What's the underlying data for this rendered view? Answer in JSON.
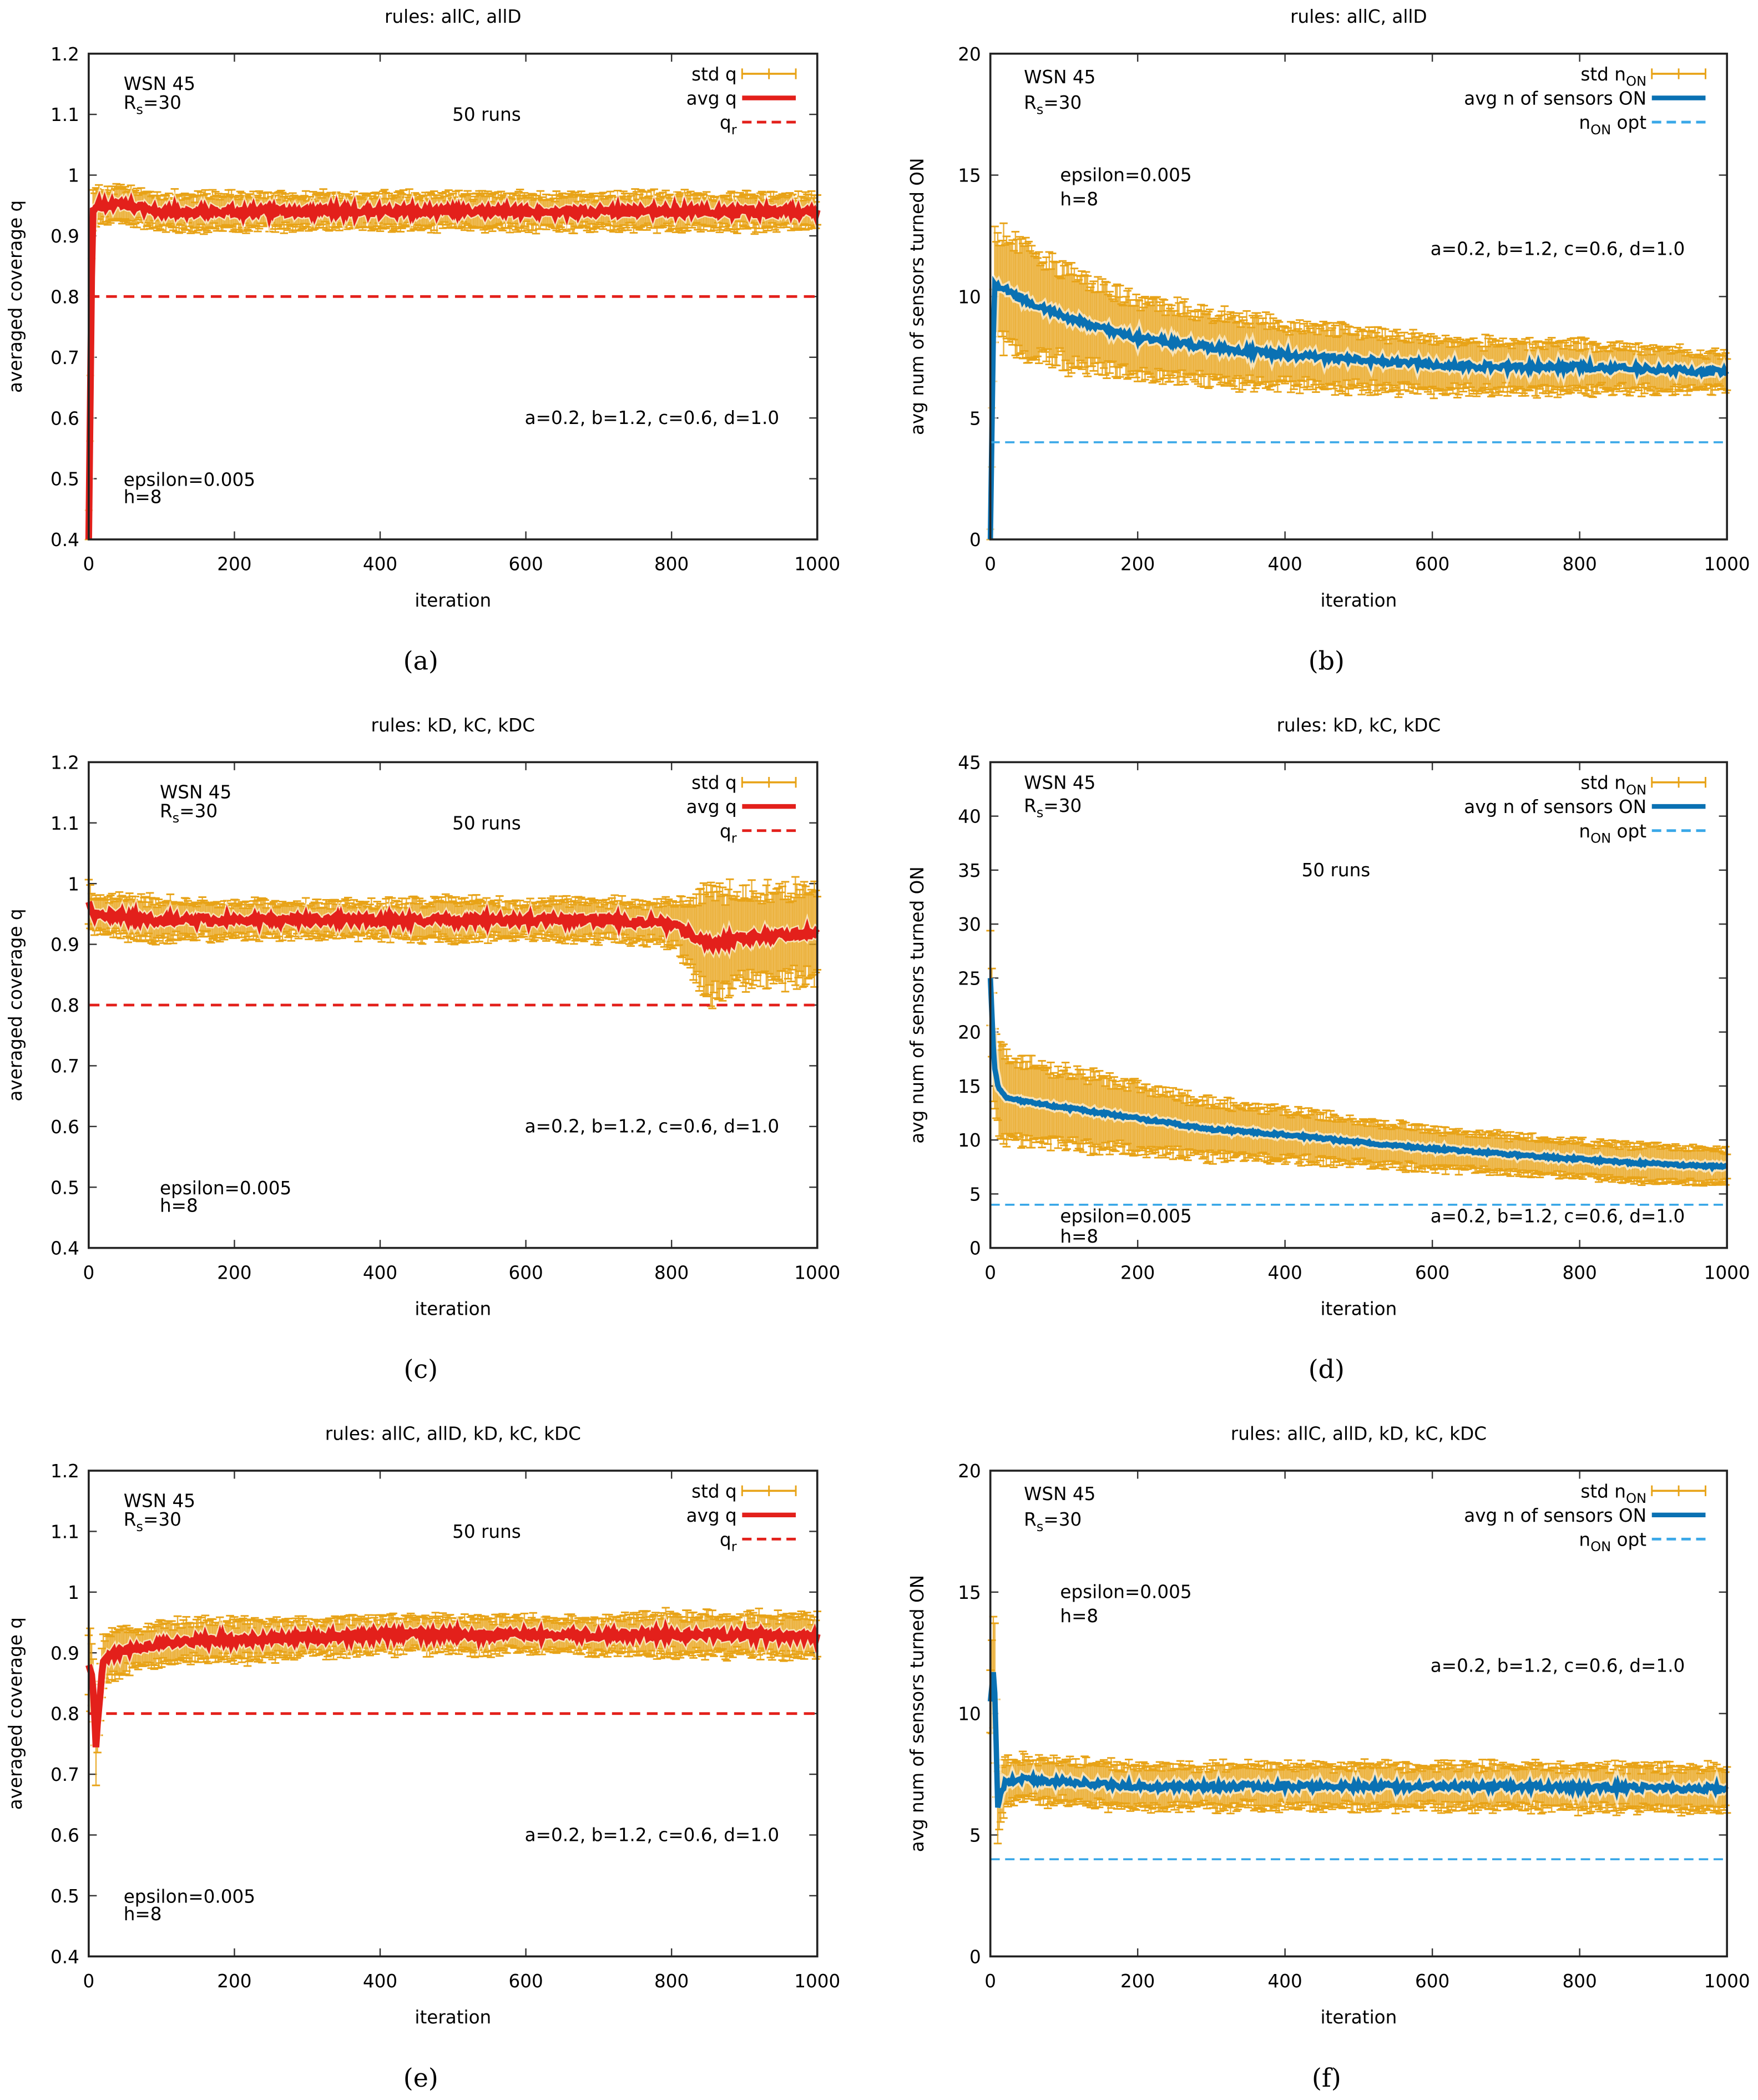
{
  "colors": {
    "std": "#e8a317",
    "avg_q": "#e3201b",
    "avg_n": "#0a71b3",
    "opt": "#3aa8e8",
    "qr": "#e3201b"
  },
  "chart_data": [
    {
      "id": "a",
      "caption": "(a)",
      "type": "line",
      "title": "rules: allC, allD",
      "xlabel": "iteration",
      "ylabel": "averaged coverage q",
      "xlim": [
        0,
        1000
      ],
      "ylim": [
        0.4,
        1.2
      ],
      "xticks": [
        0,
        200,
        400,
        600,
        800,
        1000
      ],
      "yticks": [
        0.4,
        0.5,
        0.6,
        0.7,
        0.8,
        0.9,
        1,
        1.1,
        1.2
      ],
      "legend": [
        "std q",
        "avg q",
        "q{r}"
      ],
      "legend_placement": "top-right",
      "annotations": [
        "WSN 45",
        "R{s}=30",
        "50 runs",
        "epsilon=0.005",
        "h=8",
        "a=0.2, b=1.2, c=0.6, d=1.0"
      ],
      "kind": "q",
      "x": [
        0,
        5,
        10,
        20,
        50,
        100,
        150,
        200,
        300,
        400,
        500,
        600,
        700,
        800,
        900,
        1000
      ],
      "avg": [
        0.4,
        0.94,
        0.95,
        0.95,
        0.95,
        0.94,
        0.94,
        0.94,
        0.94,
        0.94,
        0.94,
        0.94,
        0.94,
        0.94,
        0.94,
        0.94
      ],
      "std": [
        0.05,
        0.03,
        0.025,
        0.025,
        0.025,
        0.025,
        0.025,
        0.025,
        0.025,
        0.025,
        0.025,
        0.025,
        0.025,
        0.025,
        0.025,
        0.025
      ],
      "reference": 0.8
    },
    {
      "id": "b",
      "caption": "(b)",
      "type": "line",
      "title": "rules: allC, allD",
      "xlabel": "iteration",
      "ylabel": "avg num of sensors turned ON",
      "xlim": [
        0,
        1000
      ],
      "ylim": [
        0,
        20
      ],
      "xticks": [
        0,
        200,
        400,
        600,
        800,
        1000
      ],
      "yticks": [
        0,
        5,
        10,
        15,
        20
      ],
      "legend": [
        "std n{ON}",
        "avg n of sensors ON",
        "n{ON} opt"
      ],
      "legend_placement": "top-right",
      "annotations": [
        "WSN 45",
        "R{s}=30",
        "epsilon=0.005",
        "h=8",
        "a=0.2, b=1.2, c=0.6, d=1.0"
      ],
      "kind": "n",
      "x": [
        0,
        5,
        10,
        20,
        50,
        100,
        150,
        200,
        300,
        400,
        500,
        600,
        700,
        800,
        900,
        1000
      ],
      "avg": [
        0,
        10.5,
        10.5,
        10.3,
        9.8,
        9.2,
        8.7,
        8.3,
        7.9,
        7.6,
        7.4,
        7.2,
        7.1,
        7.1,
        7.0,
        6.9
      ],
      "std": [
        0.5,
        2.2,
        2.2,
        2.1,
        2.0,
        1.8,
        1.6,
        1.5,
        1.3,
        1.2,
        1.1,
        1.0,
        0.9,
        0.9,
        0.8,
        0.7
      ],
      "reference": 4
    },
    {
      "id": "c",
      "caption": "(c)",
      "type": "line",
      "title": "rules: kD, kC, kDC",
      "xlabel": "iteration",
      "ylabel": "averaged coverage q",
      "xlim": [
        0,
        1000
      ],
      "ylim": [
        0.4,
        1.2
      ],
      "xticks": [
        0,
        200,
        400,
        600,
        800,
        1000
      ],
      "yticks": [
        0.4,
        0.5,
        0.6,
        0.7,
        0.8,
        0.9,
        1,
        1.1,
        1.2
      ],
      "legend": [
        "std q",
        "avg q",
        "q{r}"
      ],
      "legend_placement": "top-right",
      "annotations": [
        "WSN 45",
        "R{s}=30",
        "50 runs",
        "epsilon=0.005",
        "h=8",
        "a=0.2, b=1.2, c=0.6, d=1.0"
      ],
      "kind": "q",
      "x": [
        0,
        5,
        10,
        20,
        50,
        100,
        150,
        200,
        300,
        400,
        500,
        600,
        700,
        800,
        850,
        900,
        1000
      ],
      "avg": [
        0.97,
        0.95,
        0.95,
        0.95,
        0.945,
        0.94,
        0.94,
        0.94,
        0.94,
        0.94,
        0.94,
        0.94,
        0.94,
        0.935,
        0.9,
        0.91,
        0.92
      ],
      "std": [
        0.03,
        0.025,
        0.025,
        0.025,
        0.03,
        0.03,
        0.025,
        0.025,
        0.025,
        0.025,
        0.03,
        0.025,
        0.03,
        0.03,
        0.08,
        0.07,
        0.07
      ],
      "reference": 0.8
    },
    {
      "id": "d",
      "caption": "(d)",
      "type": "line",
      "title": "rules: kD, kC, kDC",
      "xlabel": "iteration",
      "ylabel": "avg num of sensors turned ON",
      "xlim": [
        0,
        1000
      ],
      "ylim": [
        0,
        45
      ],
      "xticks": [
        0,
        200,
        400,
        600,
        800,
        1000
      ],
      "yticks": [
        0,
        5,
        10,
        15,
        20,
        25,
        30,
        35,
        40,
        45
      ],
      "legend": [
        "std n{ON}",
        "avg n of sensors ON",
        "n{ON} opt"
      ],
      "legend_placement": "top-right",
      "annotations": [
        "WSN 45",
        "R{s}=30",
        "50 runs",
        "epsilon=0.005",
        "h=8",
        "a=0.2, b=1.2, c=0.6, d=1.0"
      ],
      "kind": "n",
      "x": [
        0,
        5,
        10,
        20,
        50,
        100,
        150,
        200,
        300,
        400,
        500,
        600,
        700,
        800,
        900,
        1000
      ],
      "avg": [
        25,
        17,
        15,
        14,
        13.5,
        13,
        12.5,
        12,
        11,
        10.5,
        9.8,
        9.2,
        8.7,
        8.2,
        7.8,
        7.5
      ],
      "std": [
        4,
        4,
        3.8,
        3.6,
        3.4,
        3.2,
        3.0,
        2.8,
        2.4,
        2.1,
        1.9,
        1.7,
        1.6,
        1.5,
        1.5,
        1.4
      ],
      "reference": 4
    },
    {
      "id": "e",
      "caption": "(e)",
      "type": "line",
      "title": "rules: allC, allD, kD, kC, kDC",
      "xlabel": "iteration",
      "ylabel": "averaged coverage q",
      "xlim": [
        0,
        1000
      ],
      "ylim": [
        0.4,
        1.2
      ],
      "xticks": [
        0,
        200,
        400,
        600,
        800,
        1000
      ],
      "yticks": [
        0.4,
        0.5,
        0.6,
        0.7,
        0.8,
        0.9,
        1,
        1.1,
        1.2
      ],
      "legend": [
        "std q",
        "avg q",
        "q{r}"
      ],
      "legend_placement": "top-right",
      "annotations": [
        "WSN 45",
        "R{s}=30",
        "50 runs",
        "epsilon=0.005",
        "h=8",
        "a=0.2, b=1.2, c=0.6, d=1.0"
      ],
      "kind": "q",
      "x": [
        0,
        5,
        10,
        20,
        50,
        100,
        150,
        200,
        300,
        400,
        500,
        600,
        700,
        800,
        900,
        1000
      ],
      "avg": [
        0.88,
        0.86,
        0.75,
        0.89,
        0.905,
        0.915,
        0.92,
        0.92,
        0.925,
        0.93,
        0.93,
        0.93,
        0.93,
        0.93,
        0.93,
        0.925
      ],
      "std": [
        0.05,
        0.06,
        0.06,
        0.035,
        0.03,
        0.03,
        0.03,
        0.03,
        0.025,
        0.025,
        0.025,
        0.025,
        0.025,
        0.03,
        0.03,
        0.03
      ],
      "reference": 0.8
    },
    {
      "id": "f",
      "caption": "(f)",
      "type": "line",
      "title": "rules: allC, allD, kD, kC, kDC",
      "xlabel": "iteration",
      "ylabel": "avg num of sensors turned ON",
      "xlim": [
        0,
        1000
      ],
      "ylim": [
        0,
        20
      ],
      "xticks": [
        0,
        200,
        400,
        600,
        800,
        1000
      ],
      "yticks": [
        0,
        5,
        10,
        15,
        20
      ],
      "legend": [
        "std n{ON}",
        "avg n of sensors ON",
        "n{ON} opt"
      ],
      "legend_placement": "top-right",
      "annotations": [
        "WSN 45",
        "R{s}=30",
        "epsilon=0.005",
        "h=8",
        "a=0.2, b=1.2, c=0.6, d=1.0"
      ],
      "kind": "n",
      "x": [
        0,
        5,
        10,
        20,
        50,
        100,
        150,
        200,
        300,
        400,
        500,
        600,
        700,
        800,
        900,
        1000
      ],
      "avg": [
        10.5,
        12,
        6.2,
        7.2,
        7.3,
        7.2,
        7.1,
        7.0,
        7.0,
        7.0,
        7.0,
        7.0,
        7.0,
        6.95,
        6.95,
        6.9
      ],
      "std": [
        1.5,
        2.5,
        1.2,
        0.9,
        0.8,
        0.8,
        0.8,
        0.8,
        0.8,
        0.8,
        0.8,
        0.8,
        0.8,
        0.8,
        0.8,
        0.8
      ],
      "reference": 4
    }
  ]
}
